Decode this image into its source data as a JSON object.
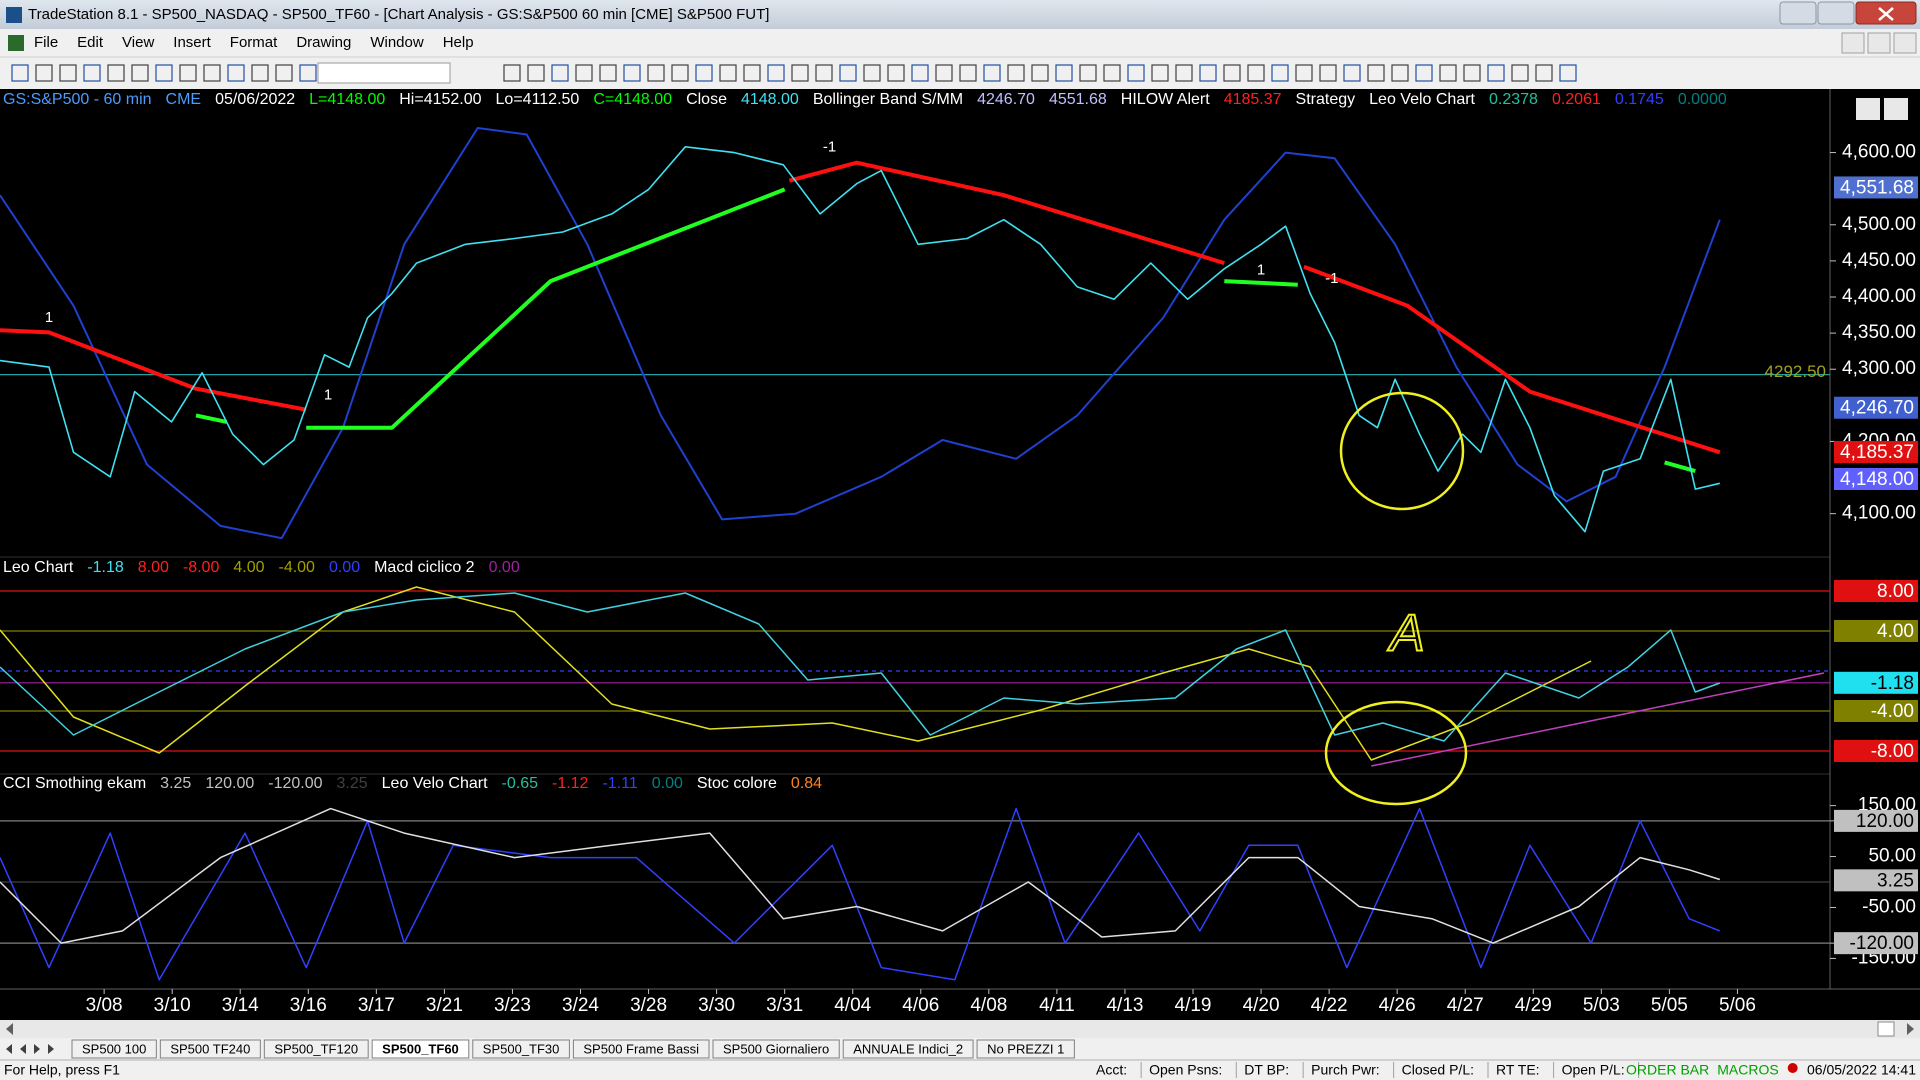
{
  "window": {
    "title": "TradeStation 8.1 - SP500_NASDAQ - SP500_TF60 - [Chart Analysis - GS:S&P500  60 min  [CME] S&P500 FUT]",
    "menu": [
      "File",
      "Edit",
      "View",
      "Insert",
      "Format",
      "Drawing",
      "Window",
      "Help"
    ]
  },
  "chart_data": [
    {
      "type": "line",
      "header": [
        {
          "text": "GS:S&P500 - 60 min",
          "color": "#4a9cff"
        },
        {
          "text": "CME",
          "color": "#4a9cff"
        },
        {
          "text": "05/06/2022",
          "color": "#ffffff"
        },
        {
          "text": "L=4148.00",
          "color": "#00ff00"
        },
        {
          "text": "Hi=4152.00",
          "color": "#ffffff"
        },
        {
          "text": "Lo=4112.50",
          "color": "#ffffff"
        },
        {
          "text": "C=4148.00",
          "color": "#00ff00"
        },
        {
          "text": "Close",
          "color": "#ffffff"
        },
        {
          "text": "4148.00",
          "color": "#40e0f0"
        },
        {
          "text": "Bollinger Band S/MM",
          "color": "#ffffff"
        },
        {
          "text": "4246.70",
          "color": "#c0c0ff"
        },
        {
          "text": "4551.68",
          "color": "#c0c0ff"
        },
        {
          "text": "HILOW Alert",
          "color": "#ffffff"
        },
        {
          "text": "4185.37",
          "color": "#ff2020"
        },
        {
          "text": "Strategy",
          "color": "#ffffff"
        },
        {
          "text": "Leo Velo Chart",
          "color": "#ffffff"
        },
        {
          "text": "0.2378",
          "color": "#20c0a0"
        },
        {
          "text": "0.2061",
          "color": "#ff2020"
        },
        {
          "text": "0.1745",
          "color": "#3040ff"
        },
        {
          "text": "0.0000",
          "color": "#008080"
        }
      ],
      "xlim": [
        -1.53,
        25.36
      ],
      "xticks": [
        {
          "value": 0,
          "label": "3/08"
        },
        {
          "value": 1,
          "label": "3/10"
        },
        {
          "value": 2,
          "label": "3/14"
        },
        {
          "value": 3,
          "label": "3/16"
        },
        {
          "value": 4,
          "label": "3/17"
        },
        {
          "value": 5,
          "label": "3/21"
        },
        {
          "value": 6,
          "label": "3/23"
        },
        {
          "value": 7,
          "label": "3/24"
        },
        {
          "value": 8,
          "label": "3/28"
        },
        {
          "value": 9,
          "label": "3/30"
        },
        {
          "value": 10,
          "label": "3/31"
        },
        {
          "value": 11,
          "label": "4/04"
        },
        {
          "value": 12,
          "label": "4/06"
        },
        {
          "value": 13,
          "label": "4/08"
        },
        {
          "value": 14,
          "label": "4/11"
        },
        {
          "value": 15,
          "label": "4/13"
        },
        {
          "value": 16,
          "label": "4/19"
        },
        {
          "value": 17,
          "label": "4/20"
        },
        {
          "value": 18,
          "label": "4/22"
        },
        {
          "value": 19,
          "label": "4/26"
        },
        {
          "value": 20,
          "label": "4/27"
        },
        {
          "value": 21,
          "label": "4/29"
        },
        {
          "value": 22,
          "label": "5/03"
        },
        {
          "value": 23,
          "label": "5/05"
        },
        {
          "value": 24,
          "label": "5/06"
        }
      ],
      "ylim": [
        4040,
        4688
      ],
      "yticks": [
        {
          "value": 4600,
          "label": "4,600.00"
        },
        {
          "value": 4500,
          "label": "4,500.00"
        },
        {
          "value": 4450,
          "label": "4,450.00"
        },
        {
          "value": 4400,
          "label": "4,400.00"
        },
        {
          "value": 4350,
          "label": "4,350.00"
        },
        {
          "value": 4300,
          "label": "4,300.00"
        },
        {
          "value": 4200,
          "label": "4,200.00"
        },
        {
          "value": 4100,
          "label": "4,100.00"
        }
      ],
      "hlines": [
        {
          "value": 4292.5,
          "label": "4292.50",
          "color": "#20a0a0"
        }
      ],
      "badges": [
        {
          "value": 4551.68,
          "label": "4,551.68",
          "color": "#5070d0",
          "text_color": "#ffffff"
        },
        {
          "value": 4246.7,
          "label": "4,246.70",
          "color": "#4060d0",
          "text_color": "#ffffff"
        },
        {
          "value": 4185.37,
          "label": "4,185.37",
          "color": "#e01010",
          "text_color": "#ffffff"
        },
        {
          "value": 4148,
          "label": "4,148.00",
          "color": "#6060ff",
          "text_color": "#ffffff"
        }
      ],
      "series": [
        {
          "color": "#2040d0",
          "width": 2,
          "x": [
            -1.53,
            -0.45,
            0.63,
            1.71,
            2.61,
            3.51,
            4.41,
            5.49,
            6.21,
            7.1,
            8.18,
            9.08,
            10.16,
            11.42,
            12.32,
            13.4,
            14.3,
            15.56,
            16.46,
            17.36,
            18.08,
            18.97,
            19.87,
            20.77,
            21.49,
            22.21,
            22.93,
            23.74
          ],
          "values": [
            4541,
            4388,
            4168,
            4083,
            4066,
            4219,
            4473,
            4634,
            4625,
            4473,
            4236,
            4092,
            4100,
            4151,
            4202,
            4176,
            4236,
            4371,
            4507,
            4600,
            4592,
            4473,
            4303,
            4168,
            4117,
            4151,
            4303,
            4507
          ]
        },
        {
          "color": "#ff1010",
          "width": 4,
          "x": [
            -1.53,
            -0.81,
            1.35,
            2.97,
            null,
            10.07,
            11.06,
            13.22,
            16.46,
            null,
            17.63,
            19.15,
            20.95,
            23.74
          ],
          "values": [
            4354,
            4351,
            4273,
            4244,
            null,
            4561,
            4586,
            4541,
            4447,
            null,
            4442,
            4388,
            4269,
            4185
          ]
        },
        {
          "color": "#20ff20",
          "width": 4,
          "x": [
            1.35,
            1.8,
            null,
            2.97,
            4.23,
            6.56,
            10.0,
            null,
            16.46,
            17.54,
            null,
            22.93,
            23.38
          ],
          "values": [
            4236,
            4227,
            null,
            4219,
            4219,
            4422,
            4549,
            null,
            4422,
            4417,
            null,
            4171,
            4159
          ]
        },
        {
          "color": "#40e0f0",
          "width": 1.6,
          "x": [
            -1.53,
            -0.81,
            -0.45,
            0.09,
            0.45,
            0.99,
            1.44,
            1.89,
            2.34,
            2.79,
            3.24,
            3.6,
            3.87,
            4.23,
            4.59,
            5.31,
            6.03,
            6.74,
            7.46,
            8.0,
            8.54,
            9.26,
            9.98,
            10.52,
            11.06,
            11.42,
            11.96,
            12.68,
            13.22,
            13.76,
            14.3,
            14.84,
            15.38,
            15.92,
            16.46,
            17.0,
            17.36,
            17.72,
            18.08,
            18.44,
            18.71,
            18.97,
            19.33,
            19.6,
            19.96,
            20.23,
            20.59,
            20.95,
            21.31,
            21.76,
            22.03,
            22.57,
            23.02,
            23.38,
            23.74
          ],
          "values": [
            4312,
            4303,
            4185,
            4151,
            4269,
            4227,
            4295,
            4210,
            4168,
            4202,
            4320,
            4303,
            4371,
            4405,
            4447,
            4473,
            4481,
            4490,
            4515,
            4549,
            4608,
            4600,
            4583,
            4515,
            4557,
            4575,
            4473,
            4481,
            4507,
            4473,
            4414,
            4397,
            4447,
            4397,
            4439,
            4473,
            4498,
            4405,
            4337,
            4236,
            4219,
            4286,
            4210,
            4159,
            4210,
            4185,
            4286,
            4219,
            4125,
            4075,
            4159,
            4176,
            4286,
            4134,
            4142
          ]
        }
      ],
      "signals": [
        {
          "label": "1",
          "x": -0.81,
          "y": 4354
        },
        {
          "label": "-1",
          "x": 10.66,
          "y": 4590
        },
        {
          "label": "1",
          "x": 3.29,
          "y": 4247
        },
        {
          "label": "1",
          "x": 17.0,
          "y": 4420
        },
        {
          "label": "-1",
          "x": 18.04,
          "y": 4408
        }
      ]
    },
    {
      "type": "line",
      "header": [
        {
          "text": "Leo Chart",
          "color": "#ffffff"
        },
        {
          "text": "-1.18",
          "color": "#40e0f0"
        },
        {
          "text": "8.00",
          "color": "#ff2020"
        },
        {
          "text": "-8.00",
          "color": "#ff2020"
        },
        {
          "text": "4.00",
          "color": "#a0a000"
        },
        {
          "text": "-4.00",
          "color": "#a0a000"
        },
        {
          "text": "0.00",
          "color": "#3040ff"
        },
        {
          "text": "Macd ciclico 2",
          "color": "#ffffff"
        },
        {
          "text": "0.00",
          "color": "#a020a0"
        }
      ],
      "xlim": [
        -1.53,
        25.36
      ],
      "ylim": [
        -10.3,
        11.4
      ],
      "hlines": [
        {
          "value": 8,
          "color": "#e01010"
        },
        {
          "value": 4,
          "color": "#808000"
        },
        {
          "value": 0,
          "color": "#3040ff",
          "dash": true
        },
        {
          "value": -1.18,
          "color": "#a020a0"
        },
        {
          "value": -4,
          "color": "#808000"
        },
        {
          "value": -8,
          "color": "#e01010"
        }
      ],
      "badges": [
        {
          "value": 8,
          "label": "8.00",
          "color": "#e01010",
          "text_color": "#ffffff"
        },
        {
          "value": 4,
          "label": "4.00",
          "color": "#808000",
          "text_color": "#ffffff"
        },
        {
          "value": -1.18,
          "label": "-1.18",
          "color": "#20e0f0",
          "text_color": "#000000"
        },
        {
          "value": -4,
          "label": "-4.00",
          "color": "#808000",
          "text_color": "#ffffff"
        },
        {
          "value": -8,
          "label": "-8.00",
          "color": "#e01010",
          "text_color": "#ffffff"
        }
      ],
      "series": [
        {
          "color": "#e0e020",
          "width": 1.5,
          "x": [
            -1.53,
            -0.45,
            0.81,
            2.07,
            3.51,
            4.59,
            6.03,
            7.46,
            8.9,
            10.7,
            11.96,
            13.76,
            15.56,
            16.82,
            17.72,
            18.62,
            20.05,
            21.85
          ],
          "values": [
            4.1,
            -4.6,
            -8.2,
            -1.5,
            5.9,
            8.4,
            5.9,
            -3.3,
            -5.8,
            -5.2,
            -7.0,
            -3.9,
            -0.2,
            2.2,
            0.4,
            -8.9,
            -5.2,
            1.0
          ]
        },
        {
          "color": "#40d0e0",
          "width": 1.5,
          "x": [
            -1.53,
            -0.45,
            0.63,
            2.07,
            3.51,
            4.59,
            6.03,
            7.1,
            8.54,
            9.62,
            10.34,
            11.42,
            12.14,
            13.22,
            14.3,
            15.74,
            16.64,
            17.36,
            18.08,
            18.79,
            19.69,
            20.59,
            21.67,
            22.39,
            23.02,
            23.38,
            23.74
          ],
          "values": [
            0.4,
            -6.4,
            -2.7,
            2.2,
            5.9,
            7.1,
            7.8,
            5.9,
            7.8,
            4.7,
            -0.9,
            -0.2,
            -6.4,
            -2.7,
            -3.3,
            -2.7,
            2.2,
            4.1,
            -6.4,
            -5.2,
            -7.0,
            -0.2,
            -2.7,
            0.4,
            4.1,
            -2.1,
            -1.2
          ]
        },
        {
          "color": "#c040c0",
          "width": 1.5,
          "x": [
            18.62,
            25.27
          ],
          "values": [
            -9.5,
            -0.2
          ]
        }
      ],
      "annotations": [
        {
          "text": "A",
          "x": 19.15,
          "y": 3.4
        }
      ]
    },
    {
      "type": "line",
      "header": [
        {
          "text": "CCI Smothing ekam",
          "color": "#ffffff"
        },
        {
          "text": "3.25",
          "color": "#c0c0c0"
        },
        {
          "text": "120.00",
          "color": "#c0c0c0"
        },
        {
          "text": "-120.00",
          "color": "#c0c0c0"
        },
        {
          "text": "3.25",
          "color": "#404040"
        },
        {
          "text": "Leo Velo Chart",
          "color": "#ffffff"
        },
        {
          "text": "-0.65",
          "color": "#20c0a0"
        },
        {
          "text": "-1.12",
          "color": "#ff2020"
        },
        {
          "text": "-1.11",
          "color": "#3040ff"
        },
        {
          "text": "0.00",
          "color": "#008080"
        },
        {
          "text": "Stoc colore",
          "color": "#ffffff"
        },
        {
          "text": "0.84",
          "color": "#ff8020"
        }
      ],
      "xlim": [
        -1.53,
        25.36
      ],
      "ylim": [
        -210,
        212
      ],
      "yticks": [
        {
          "value": 150,
          "label": "150.00"
        },
        {
          "value": 120,
          "label": "120.00"
        },
        {
          "value": 50,
          "label": "50.00"
        },
        {
          "value": -50,
          "label": "-50.00"
        },
        {
          "value": -120,
          "label": "-120.00"
        },
        {
          "value": -150,
          "label": "-150.00"
        }
      ],
      "hlines": [
        {
          "value": 120,
          "color": "#808080"
        },
        {
          "value": 0,
          "color": "#404040"
        },
        {
          "value": -120,
          "color": "#808080"
        }
      ],
      "badges": [
        {
          "value": 120,
          "label": "120.00",
          "color": "#c0c0c0",
          "text_color": "#000000"
        },
        {
          "value": 3.25,
          "label": "3.25",
          "color": "#c0c0c0",
          "text_color": "#000000"
        },
        {
          "value": -120,
          "label": "-120.00",
          "color": "#c0c0c0",
          "text_color": "#000000"
        }
      ],
      "series": [
        {
          "color": "#3040ff",
          "width": 1.5,
          "x": [
            -1.53,
            -0.81,
            0.09,
            0.81,
            2.07,
            2.97,
            3.87,
            4.41,
            5.13,
            6.56,
            7.82,
            9.26,
            10.7,
            11.42,
            12.5,
            13.4,
            14.12,
            15.2,
            16.1,
            16.82,
            17.54,
            18.26,
            19.33,
            20.23,
            20.95,
            21.85,
            22.57,
            23.29,
            23.74
          ],
          "values": [
            48,
            -168,
            96,
            -192,
            96,
            -168,
            120,
            -120,
            72,
            48,
            48,
            -120,
            72,
            -168,
            -192,
            144,
            -120,
            96,
            -96,
            72,
            72,
            -168,
            144,
            -168,
            72,
            -120,
            120,
            -72,
            -96
          ]
        },
        {
          "color": "#e0e0e0",
          "width": 1.5,
          "x": [
            -1.53,
            -0.63,
            0.27,
            1.71,
            3.33,
            4.41,
            6.03,
            7.46,
            8.9,
            9.98,
            11.06,
            12.32,
            13.58,
            14.66,
            15.74,
            16.82,
            17.54,
            18.44,
            19.51,
            20.41,
            21.67,
            22.57,
            23.29,
            23.74
          ],
          "values": [
            0,
            -120,
            -96,
            48,
            144,
            96,
            48,
            72,
            96,
            -72,
            -48,
            -96,
            0,
            -108,
            -96,
            48,
            48,
            -48,
            -72,
            -120,
            -48,
            48,
            24,
            5
          ]
        }
      ]
    }
  ],
  "tabs": [
    "SP500 100",
    "SP500 TF240",
    "SP500_TF120",
    "SP500_TF60",
    "SP500_TF30",
    "SP500 Frame Bassi",
    "SP500 Giornaliero",
    "ANNUALE Indici_2",
    "No PREZZI 1"
  ],
  "status_bar": {
    "help": "For Help, press F1",
    "fields": [
      "Acct:",
      "Open Psns:",
      "DT BP:",
      "Purch Pwr:",
      "Closed P/L:",
      "RT TE:",
      "Open P/L:"
    ],
    "order_bar": "ORDER BAR",
    "macros": "MACROS",
    "datetime": "06/05/2022 14:41"
  }
}
